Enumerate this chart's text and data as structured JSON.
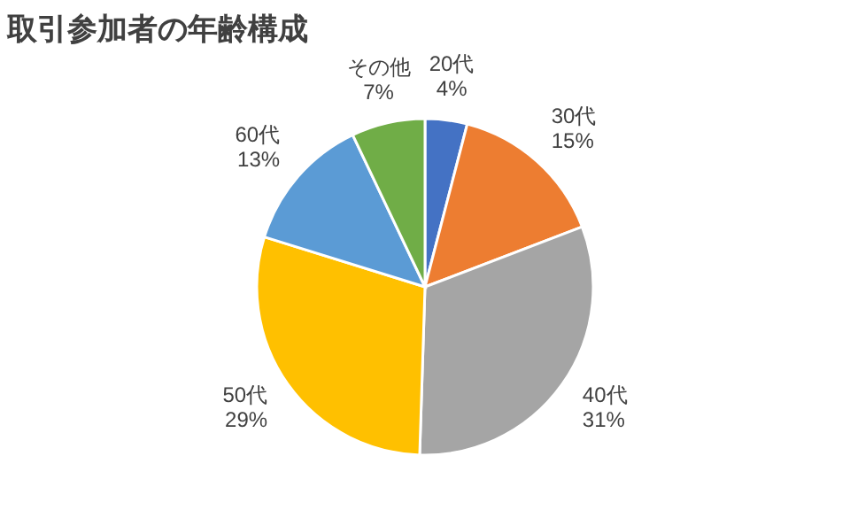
{
  "chart_data": {
    "type": "pie",
    "title": "取引参加者の年齢構成",
    "categories": [
      "20代",
      "30代",
      "40代",
      "50代",
      "60代",
      "その他"
    ],
    "values": [
      4,
      15,
      31,
      29,
      13,
      7
    ],
    "colors": [
      "#4472c4",
      "#ed7d31",
      "#a5a5a5",
      "#ffc000",
      "#5b9bd5",
      "#70ad47"
    ],
    "value_labels": [
      "4%",
      "15%",
      "31%",
      "29%",
      "13%",
      "7%"
    ]
  }
}
